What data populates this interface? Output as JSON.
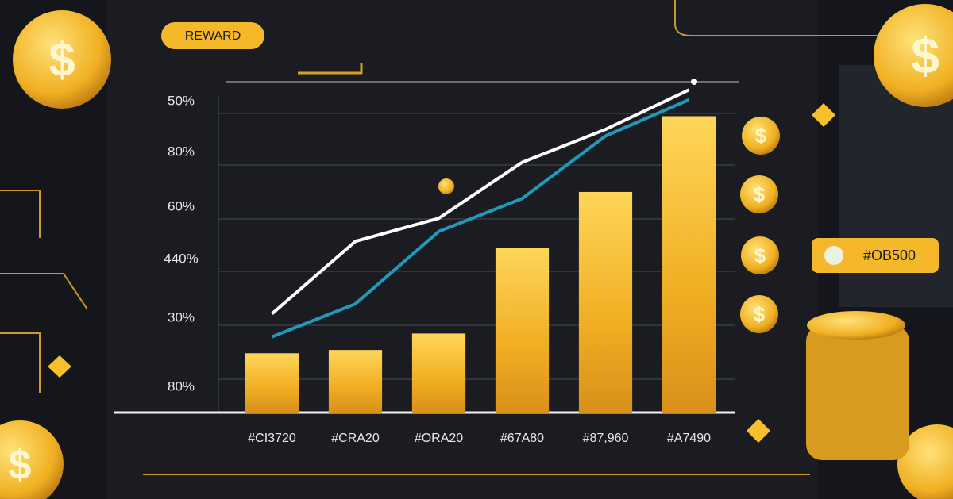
{
  "header": {
    "badge": "REWARD"
  },
  "side_card": {
    "text": "#OB500"
  },
  "chart_data": {
    "type": "bar",
    "categories": [
      "#CI3720",
      "#CRA20",
      "#ORA20",
      "#67A80",
      "#87,960",
      "#A7490"
    ],
    "values": [
      18,
      19,
      24,
      50,
      67,
      90
    ],
    "color": "#f2b52a",
    "ylim": [
      0,
      100
    ],
    "row_labels": [
      "50%",
      "80%",
      "60%",
      "440%",
      "30%",
      "80%"
    ],
    "lines": [
      {
        "color": "#ffffff",
        "values": [
          30,
          52,
          59,
          76,
          86,
          98
        ]
      },
      {
        "color": "#1f9bb8",
        "values": [
          23,
          33,
          55,
          65,
          84,
          95
        ]
      }
    ]
  }
}
